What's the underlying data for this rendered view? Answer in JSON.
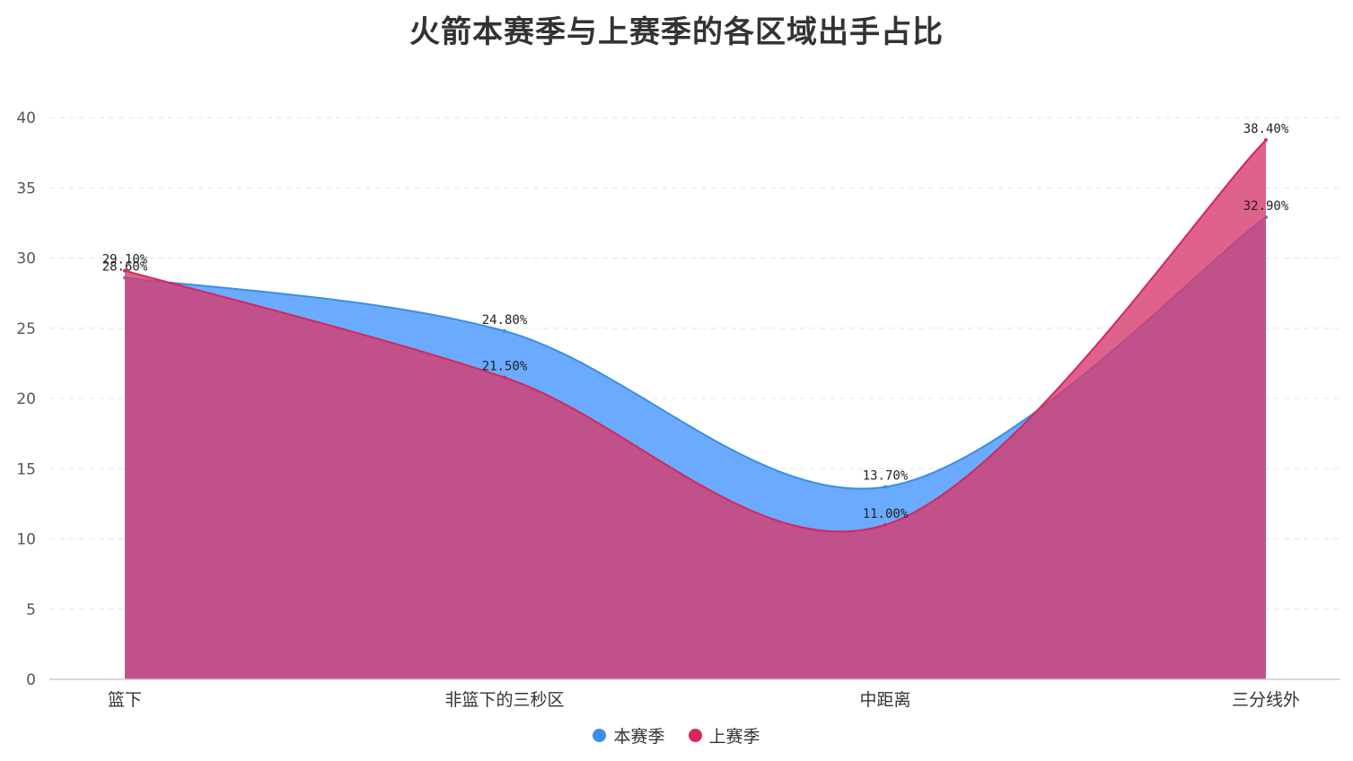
{
  "chart_data": {
    "type": "area",
    "title": "火箭本赛季与上赛季的各区域出手占比",
    "categories": [
      "篮下",
      "非篮下的三秒区",
      "中距离",
      "三分线外"
    ],
    "series": [
      {
        "name": "本赛季",
        "values": [
          28.6,
          24.8,
          13.7,
          32.9
        ],
        "labels": [
          "28.60%",
          "24.80%",
          "13.70%",
          "32.90%"
        ],
        "color": "#3a8ee6",
        "fill": "#6aabff"
      },
      {
        "name": "上赛季",
        "values": [
          29.1,
          21.5,
          11.0,
          38.4
        ],
        "labels": [
          "29.10%",
          "21.50%",
          "11.00%",
          "38.40%"
        ],
        "color": "#d6275a",
        "fill": "#d63b6e"
      }
    ],
    "ylim": [
      0,
      40
    ],
    "yticks": [
      "0",
      "5",
      "10",
      "15",
      "20",
      "25",
      "30",
      "35",
      "40"
    ],
    "grid": true,
    "legend": "bottom-center",
    "smooth": true
  }
}
